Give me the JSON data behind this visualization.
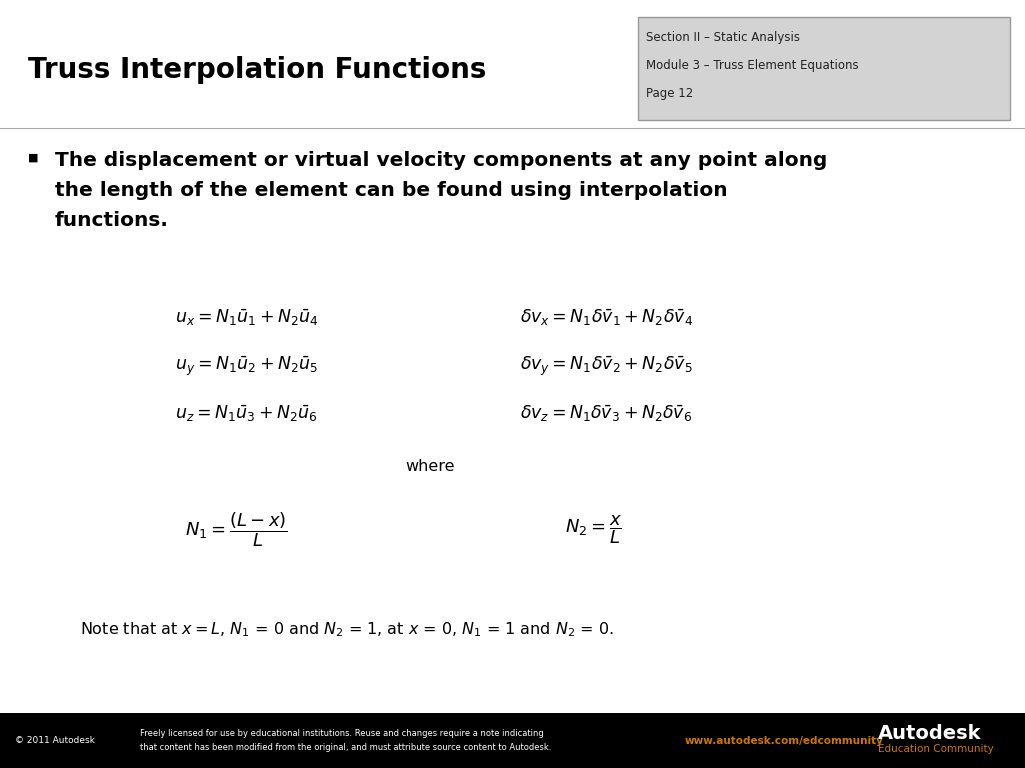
{
  "title_left": "Truss Interpolation Functions",
  "section_line1": "Section II – Static Analysis",
  "section_line2": "Module 3 – Truss Element Equations",
  "section_line3": "Page 12",
  "bullet_text_line1": "The displacement or virtual velocity components at any point along",
  "bullet_text_line2": "the length of the element can be found using interpolation",
  "bullet_text_line3": "functions.",
  "footer_left": "© 2011 Autodesk",
  "footer_url": "www.autodesk.com/edcommunity",
  "footer_brand": "Autodesk",
  "footer_brand2": "Education Community",
  "footer_license1": "Freely licensed for use by educational institutions. Reuse and changes require a note indicating",
  "footer_license2": "that content has been modified from the original, and must attribute source content to Autodesk.",
  "bg_color": "#ffffff",
  "footer_bg": "#000000",
  "header_box_bg": "#d3d3d3",
  "title_color": "#000000",
  "section_color": "#222222",
  "footer_text_color": "#ffffff",
  "footer_url_color": "#cc7700"
}
